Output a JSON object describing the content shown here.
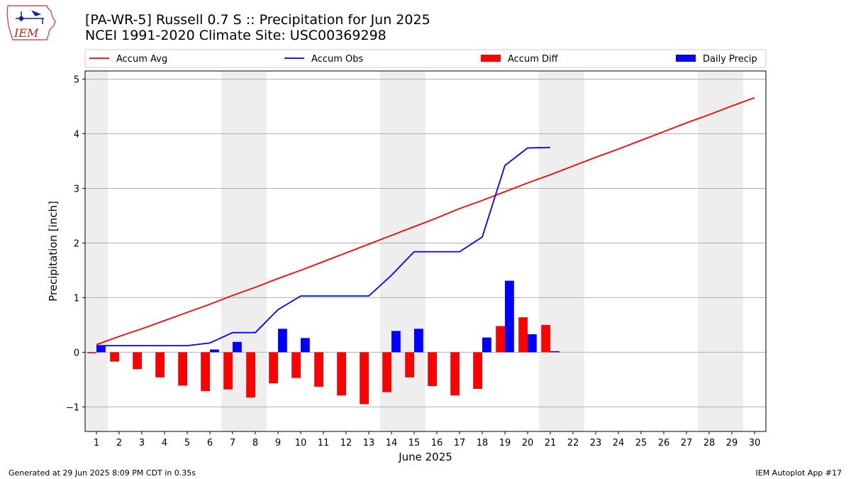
{
  "header": {
    "title_line1": "[PA-WR-5] Russell 0.7 S :: Precipitation for Jun 2025",
    "title_line2": "NCEI 1991-2020 Climate Site: USC00369298"
  },
  "logo": {
    "text": "IEM",
    "icon": "iowa-state-outline-logo"
  },
  "footer": {
    "generated": "Generated at 29 Jun 2025 8:09 PM CDT in 0.35s",
    "app": "IEM Autoplot App #17"
  },
  "colors": {
    "accum_avg": "#ff0000",
    "accum_obs": "#0000ff",
    "accum_diff": "#ff0000",
    "daily_precip": "#0000ff",
    "weekend_shade": "#eeeeee",
    "grid": "#b0b0b0"
  },
  "chart_data": {
    "type": "bar",
    "title": "[PA-WR-5] Russell 0.7 S :: Precipitation for Jun 2025",
    "subtitle": "NCEI 1991-2020 Climate Site: USC00369298",
    "xlabel": "June 2025",
    "ylabel": "Precipitation [inch]",
    "ylim": [
      -1.45,
      5.15
    ],
    "yticks": [
      -1,
      0,
      1,
      2,
      3,
      4,
      5
    ],
    "ytick_labels": [
      "−1",
      "0",
      "1",
      "2",
      "3",
      "4",
      "5"
    ],
    "x": [
      1,
      2,
      3,
      4,
      5,
      6,
      7,
      8,
      9,
      10,
      11,
      12,
      13,
      14,
      15,
      16,
      17,
      18,
      19,
      20,
      21,
      22,
      23,
      24,
      25,
      26,
      27,
      28,
      29,
      30
    ],
    "xtick_labels": [
      "1",
      "2",
      "3",
      "4",
      "5",
      "6",
      "7",
      "8",
      "9",
      "10",
      "11",
      "12",
      "13",
      "14",
      "15",
      "16",
      "17",
      "18",
      "19",
      "20",
      "21",
      "22",
      "23",
      "24",
      "25",
      "26",
      "27",
      "28",
      "29",
      "30"
    ],
    "xlim": [
      0.5,
      30.5
    ],
    "grid": "horizontal",
    "legend_position": "top",
    "weekend_shading": [
      [
        0.5,
        1.5
      ],
      [
        6.5,
        8.5
      ],
      [
        13.5,
        15.5
      ],
      [
        20.5,
        22.5
      ],
      [
        27.5,
        29.5
      ]
    ],
    "series": [
      {
        "name": "Accum Avg",
        "kind": "line",
        "values": [
          0.14,
          0.29,
          0.43,
          0.58,
          0.73,
          0.88,
          1.04,
          1.19,
          1.35,
          1.5,
          1.66,
          1.82,
          1.98,
          2.14,
          2.3,
          2.46,
          2.63,
          2.78,
          2.94,
          3.1,
          3.25,
          3.41,
          3.57,
          3.72,
          3.88,
          4.04,
          4.2,
          4.35,
          4.51,
          4.66
        ]
      },
      {
        "name": "Accum Obs",
        "kind": "line",
        "values": [
          0.12,
          0.12,
          0.12,
          0.12,
          0.12,
          0.17,
          0.36,
          0.36,
          0.78,
          1.03,
          1.03,
          1.03,
          1.03,
          1.41,
          1.84,
          1.84,
          1.84,
          2.11,
          3.42,
          3.74,
          3.75,
          null,
          null,
          null,
          null,
          null,
          null,
          null,
          null,
          null
        ]
      },
      {
        "name": "Accum Diff",
        "kind": "bar",
        "values": [
          -0.02,
          -0.17,
          -0.31,
          -0.46,
          -0.61,
          -0.71,
          -0.68,
          -0.83,
          -0.57,
          -0.47,
          -0.63,
          -0.79,
          -0.95,
          -0.73,
          -0.46,
          -0.62,
          -0.79,
          -0.67,
          0.48,
          0.64,
          0.5,
          null,
          null,
          null,
          null,
          null,
          null,
          null,
          null,
          null
        ]
      },
      {
        "name": "Daily Precip",
        "kind": "bar",
        "values": [
          0.12,
          0.0,
          0.0,
          0.0,
          0.0,
          0.05,
          0.19,
          0.0,
          0.43,
          0.26,
          0.0,
          0.0,
          0.0,
          0.39,
          0.43,
          0.0,
          0.0,
          0.27,
          1.31,
          0.33,
          0.02,
          null,
          null,
          null,
          null,
          null,
          null,
          null,
          null,
          null
        ]
      }
    ]
  }
}
